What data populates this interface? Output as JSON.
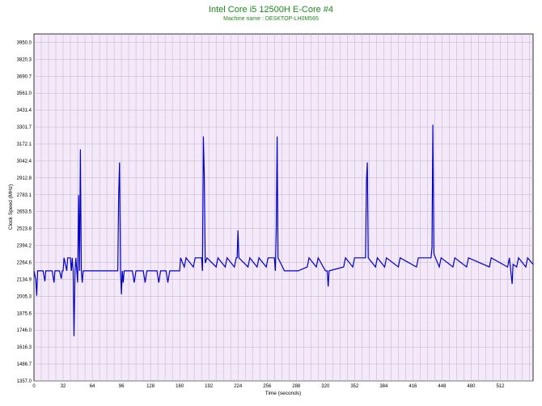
{
  "chart_data": {
    "type": "line",
    "title": "Intel Core i5 12500H E-Core #4",
    "subtitle": "Machine name : DESKTOP-LH0M565",
    "xlabel": "Time (seconds)",
    "ylabel": "Clock Speed (MHz)",
    "xlim": [
      0,
      548
    ],
    "ylim": [
      1357.0,
      4014.6
    ],
    "x_ticks": [
      "0",
      "32",
      "64",
      "96",
      "128",
      "160",
      "192",
      "224",
      "256",
      "288",
      "320",
      "352",
      "384",
      "416",
      "448",
      "480",
      "512"
    ],
    "y_ticks": [
      "3950.0",
      "3820.3",
      "3690.7",
      "3561.0",
      "3431.4",
      "3301.7",
      "3172.1",
      "3042.4",
      "2912.8",
      "2783.1",
      "2653.5",
      "2523.8",
      "2394.2",
      "2264.6",
      "2134.9",
      "2005.3",
      "1875.6",
      "1746.0",
      "1616.3",
      "1486.7",
      "1357.0"
    ],
    "grid": true,
    "colors": {
      "line": "#0000cc",
      "plot_bg": "#f5e8fb",
      "grid": "#b8b8b8",
      "title": "#1a8a1a"
    },
    "series": [
      {
        "values": [
          [
            0,
            2200
          ],
          [
            2,
            2130
          ],
          [
            3,
            2010
          ],
          [
            4,
            2200
          ],
          [
            10,
            2200
          ],
          [
            12,
            2120
          ],
          [
            13,
            2200
          ],
          [
            20,
            2200
          ],
          [
            22,
            2110
          ],
          [
            23,
            2200
          ],
          [
            28,
            2200
          ],
          [
            30,
            2140
          ],
          [
            31,
            2200
          ],
          [
            32,
            2200
          ],
          [
            33,
            2300
          ],
          [
            36,
            2200
          ],
          [
            37,
            2300
          ],
          [
            40,
            2300
          ],
          [
            41,
            2200
          ],
          [
            42,
            2300
          ],
          [
            43,
            2200
          ],
          [
            44,
            1700
          ],
          [
            45,
            2200
          ],
          [
            46,
            2300
          ],
          [
            47,
            2200
          ],
          [
            48,
            2110
          ],
          [
            49,
            2780
          ],
          [
            50,
            2200
          ],
          [
            51,
            3130
          ],
          [
            52,
            2200
          ],
          [
            53,
            2110
          ],
          [
            54,
            2200
          ],
          [
            60,
            2200
          ],
          [
            70,
            2200
          ],
          [
            80,
            2200
          ],
          [
            92,
            2200
          ],
          [
            93,
            2780
          ],
          [
            94,
            3030
          ],
          [
            95,
            2200
          ],
          [
            96,
            2020
          ],
          [
            97,
            2200
          ],
          [
            98,
            2110
          ],
          [
            99,
            2200
          ],
          [
            108,
            2200
          ],
          [
            110,
            2110
          ],
          [
            112,
            2200
          ],
          [
            120,
            2200
          ],
          [
            122,
            2110
          ],
          [
            124,
            2200
          ],
          [
            135,
            2200
          ],
          [
            137,
            2110
          ],
          [
            139,
            2200
          ],
          [
            145,
            2200
          ],
          [
            147,
            2110
          ],
          [
            149,
            2200
          ],
          [
            160,
            2200
          ],
          [
            161,
            2300
          ],
          [
            165,
            2230
          ],
          [
            167,
            2300
          ],
          [
            175,
            2230
          ],
          [
            177,
            2300
          ],
          [
            184,
            2300
          ],
          [
            185,
            2200
          ],
          [
            186,
            3230
          ],
          [
            187,
            2940
          ],
          [
            188,
            2260
          ],
          [
            190,
            2300
          ],
          [
            200,
            2230
          ],
          [
            202,
            2300
          ],
          [
            210,
            2230
          ],
          [
            212,
            2300
          ],
          [
            220,
            2230
          ],
          [
            222,
            2300
          ],
          [
            223,
            2300
          ],
          [
            224,
            2510
          ],
          [
            225,
            2300
          ],
          [
            235,
            2230
          ],
          [
            237,
            2300
          ],
          [
            245,
            2230
          ],
          [
            247,
            2300
          ],
          [
            255,
            2230
          ],
          [
            257,
            2300
          ],
          [
            264,
            2300
          ],
          [
            265,
            2200
          ],
          [
            266,
            2520
          ],
          [
            267,
            3230
          ],
          [
            268,
            2300
          ],
          [
            275,
            2200
          ],
          [
            290,
            2200
          ],
          [
            300,
            2230
          ],
          [
            302,
            2300
          ],
          [
            310,
            2230
          ],
          [
            312,
            2300
          ],
          [
            320,
            2200
          ],
          [
            322,
            2200
          ],
          [
            323,
            2080
          ],
          [
            324,
            2200
          ],
          [
            340,
            2230
          ],
          [
            342,
            2300
          ],
          [
            350,
            2230
          ],
          [
            352,
            2300
          ],
          [
            364,
            2300
          ],
          [
            365,
            2890
          ],
          [
            366,
            3030
          ],
          [
            367,
            2300
          ],
          [
            375,
            2230
          ],
          [
            377,
            2300
          ],
          [
            385,
            2230
          ],
          [
            387,
            2300
          ],
          [
            400,
            2230
          ],
          [
            402,
            2300
          ],
          [
            420,
            2230
          ],
          [
            422,
            2300
          ],
          [
            436,
            2300
          ],
          [
            437,
            2380
          ],
          [
            438,
            3320
          ],
          [
            439,
            2330
          ],
          [
            445,
            2230
          ],
          [
            447,
            2300
          ],
          [
            460,
            2230
          ],
          [
            462,
            2300
          ],
          [
            475,
            2230
          ],
          [
            477,
            2300
          ],
          [
            500,
            2230
          ],
          [
            502,
            2300
          ],
          [
            520,
            2230
          ],
          [
            522,
            2300
          ],
          [
            525,
            2100
          ],
          [
            526,
            2250
          ],
          [
            530,
            2230
          ],
          [
            532,
            2300
          ],
          [
            540,
            2230
          ],
          [
            542,
            2300
          ],
          [
            548,
            2250
          ]
        ]
      }
    ]
  }
}
